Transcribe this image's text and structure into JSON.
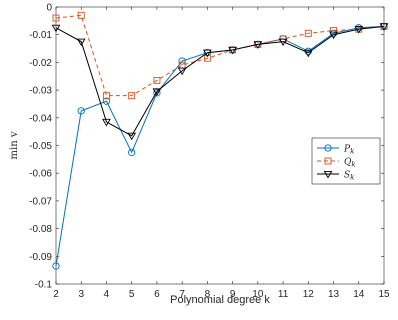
{
  "chart_data": {
    "type": "line",
    "xlabel": "Polynomial degree k",
    "ylabel": "min v",
    "xlim": [
      2,
      15
    ],
    "ylim": [
      -0.1,
      0
    ],
    "xticks": [
      2,
      3,
      4,
      5,
      6,
      7,
      8,
      9,
      10,
      11,
      12,
      13,
      14,
      15
    ],
    "yticks": [
      0,
      -0.01,
      -0.02,
      -0.03,
      -0.04,
      -0.05,
      -0.06,
      -0.07,
      -0.08,
      -0.09,
      -0.1
    ],
    "ytick_labels": [
      "0",
      "-0.01",
      "-0.02",
      "-0.03",
      "-0.04",
      "-0.05",
      "-0.06",
      "-0.07",
      "-0.08",
      "-0.09",
      "-0.1"
    ],
    "grid": false,
    "legend_position": "right",
    "x": [
      2,
      3,
      4,
      5,
      6,
      7,
      8,
      9,
      10,
      11,
      12,
      13,
      14,
      15
    ],
    "series": [
      {
        "name": "P_k",
        "legend_main": "P",
        "legend_sub": "k",
        "color": "#0072BD",
        "marker": "circle",
        "dash": "solid",
        "values": [
          -0.0935,
          -0.0375,
          -0.034,
          -0.0525,
          -0.031,
          -0.0195,
          -0.0165,
          -0.0155,
          -0.0135,
          -0.0115,
          -0.016,
          -0.0095,
          -0.0075,
          -0.007
        ]
      },
      {
        "name": "Q_k",
        "legend_main": "Q",
        "legend_sub": "k",
        "color": "#D95319",
        "marker": "square",
        "dash": "dashed",
        "values": [
          -0.004,
          -0.003,
          -0.032,
          -0.032,
          -0.0265,
          -0.021,
          -0.0185,
          -0.0155,
          -0.0135,
          -0.0115,
          -0.0095,
          -0.0085,
          -0.008,
          -0.007
        ]
      },
      {
        "name": "S_k",
        "legend_main": "S",
        "legend_sub": "k",
        "color": "#000000",
        "marker": "triangle-down",
        "dash": "solid",
        "values": [
          -0.0075,
          -0.0125,
          -0.0415,
          -0.0465,
          -0.0305,
          -0.023,
          -0.0165,
          -0.0155,
          -0.0135,
          -0.0125,
          -0.0165,
          -0.01,
          -0.008,
          -0.007
        ]
      }
    ]
  }
}
